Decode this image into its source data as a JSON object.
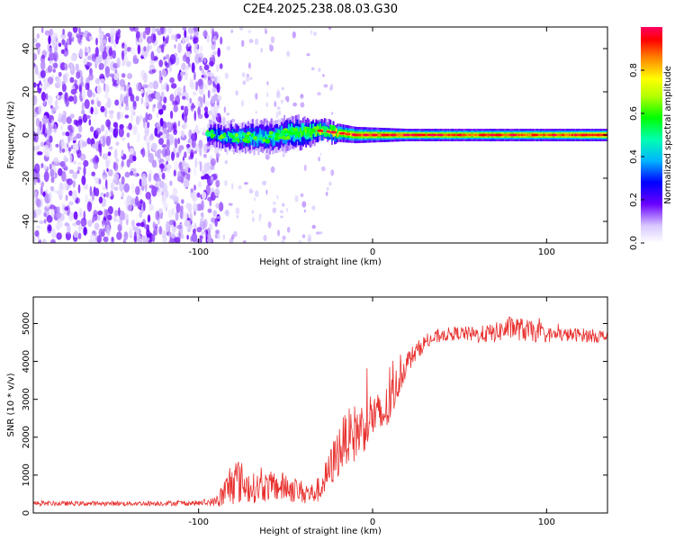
{
  "title": "C2E4.2025.238.08.03.G30",
  "chart_data": [
    {
      "type": "heatmap",
      "name": "spectrogram",
      "xlabel": "Height of straight line (km)",
      "ylabel": "Frequency (Hz)",
      "xlim": [
        -195,
        135
      ],
      "ylim": [
        -50,
        50
      ],
      "xticks": [
        -100,
        0,
        100
      ],
      "yticks": [
        -40,
        -20,
        0,
        20,
        40
      ],
      "xtick_labels": [
        "-100",
        "0",
        "100"
      ],
      "ytick_labels": [
        "-40",
        "-20",
        "0",
        "20",
        "40"
      ],
      "noise_region_x": [
        -195,
        -93
      ],
      "signal_band": [
        {
          "x": -95,
          "freq": 0,
          "width_hz": 6,
          "amp": 0.35
        },
        {
          "x": -80,
          "freq": -1,
          "width_hz": 7,
          "amp": 0.45
        },
        {
          "x": -60,
          "freq": -1,
          "width_hz": 8,
          "amp": 0.45
        },
        {
          "x": -45,
          "freq": 1,
          "width_hz": 8,
          "amp": 0.55
        },
        {
          "x": -30,
          "freq": 2,
          "width_hz": 5,
          "amp": 0.7
        },
        {
          "x": -10,
          "freq": 0,
          "width_hz": 4,
          "amp": 0.85
        },
        {
          "x": 20,
          "freq": 0,
          "width_hz": 3,
          "amp": 0.9
        },
        {
          "x": 60,
          "freq": 0,
          "width_hz": 3,
          "amp": 0.88
        },
        {
          "x": 100,
          "freq": 0,
          "width_hz": 3,
          "amp": 0.88
        },
        {
          "x": 135,
          "freq": 0,
          "width_hz": 3,
          "amp": 0.95
        }
      ],
      "colorbar": {
        "label": "Normalized spectral amplitude",
        "range": [
          0,
          1
        ],
        "ticks": [
          0.0,
          0.2,
          0.4,
          0.6,
          0.8
        ],
        "tick_labels": [
          "0.0",
          "0.2",
          "0.4",
          "0.6",
          "0.8"
        ]
      }
    },
    {
      "type": "line",
      "name": "snr",
      "xlabel": "Height of straight line (km)",
      "ylabel": "SNR (10 * v/v)",
      "xlim": [
        -195,
        135
      ],
      "ylim": [
        0,
        5700
      ],
      "xticks": [
        -100,
        0,
        100
      ],
      "yticks": [
        0,
        1000,
        2000,
        3000,
        4000,
        5000
      ],
      "xtick_labels": [
        "-100",
        "0",
        "100"
      ],
      "ytick_labels": [
        "0",
        "1000",
        "2000",
        "3000",
        "4000",
        "5000"
      ],
      "color": "#e8302e",
      "x": [
        -195,
        -150,
        -100,
        -90,
        -85,
        -80,
        -75,
        -70,
        -60,
        -50,
        -40,
        -35,
        -30,
        -25,
        -20,
        -15,
        -10,
        -5,
        0,
        5,
        10,
        15,
        20,
        30,
        40,
        50,
        60,
        70,
        80,
        90,
        100,
        110,
        120,
        135
      ],
      "y": [
        250,
        250,
        260,
        300,
        500,
        900,
        800,
        650,
        700,
        680,
        550,
        500,
        650,
        1100,
        1600,
        2000,
        2100,
        2300,
        2600,
        2500,
        2900,
        3500,
        4000,
        4500,
        4700,
        4750,
        4700,
        4750,
        4900,
        4800,
        4700,
        4700,
        4700,
        4650
      ],
      "noise_amplitude": [
        60,
        60,
        70,
        120,
        450,
        700,
        550,
        400,
        400,
        400,
        300,
        300,
        350,
        500,
        700,
        700,
        800,
        700,
        700,
        600,
        650,
        450,
        300,
        200,
        180,
        180,
        220,
        260,
        320,
        300,
        200,
        180,
        180,
        180
      ]
    }
  ]
}
